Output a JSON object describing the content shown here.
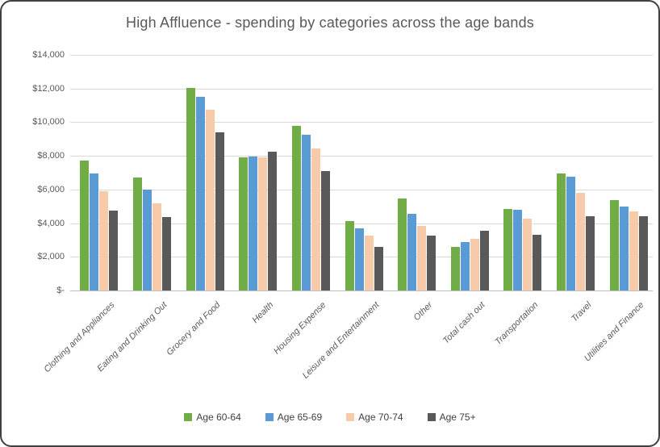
{
  "window": {
    "background": "#ffffff",
    "border_color": "#404040"
  },
  "chart_data": {
    "type": "bar",
    "title": "High Affluence - spending by categories across the age bands",
    "categories": [
      "Clothing and Appliances",
      "Eating and Drinking Out",
      "Grocery and Food",
      "Health",
      "Housing Expense",
      "Leisure and Entertainment",
      "Other",
      "Total cash out",
      "Transportation",
      "Travel",
      "Utilities and Finance"
    ],
    "series": [
      {
        "name": "Age 60-64",
        "color": "#70AD47",
        "values": [
          7700,
          6700,
          12050,
          7900,
          9800,
          4100,
          5450,
          2600,
          4850,
          6950,
          5350
        ]
      },
      {
        "name": "Age 65-69",
        "color": "#5B9BD5",
        "values": [
          6950,
          6000,
          11500,
          7950,
          9250,
          3700,
          4550,
          2900,
          4800,
          6750,
          5000
        ]
      },
      {
        "name": "Age 70-74",
        "color": "#F7CBA9",
        "values": [
          5900,
          5200,
          10750,
          7900,
          8450,
          3250,
          3850,
          3050,
          4250,
          5800,
          4700
        ]
      },
      {
        "name": "Age 75+",
        "color": "#595959",
        "values": [
          4750,
          4350,
          9400,
          8250,
          7100,
          2600,
          3250,
          3550,
          3300,
          4400,
          4400
        ]
      }
    ],
    "y_ticks": [
      {
        "label": "$-",
        "value": 0
      },
      {
        "label": "$2,000",
        "value": 2000
      },
      {
        "label": "$4,000",
        "value": 4000
      },
      {
        "label": "$6,000",
        "value": 6000
      },
      {
        "label": "$8,000",
        "value": 8000
      },
      {
        "label": "$10,000",
        "value": 10000
      },
      {
        "label": "$12,000",
        "value": 12000
      },
      {
        "label": "$14,000",
        "value": 14000
      }
    ],
    "ylim": [
      0,
      14000
    ],
    "xlabel": "",
    "ylabel": "",
    "grid": true,
    "gridline_color": "#D9D9D9",
    "text_color": "#595959",
    "legend_position": "bottom"
  }
}
